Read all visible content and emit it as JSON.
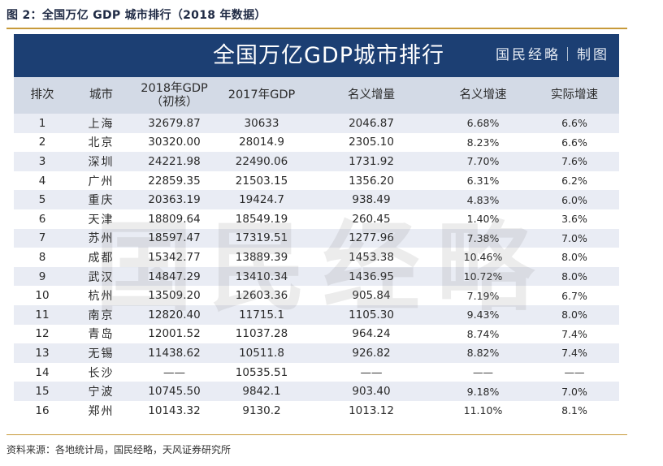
{
  "figure": {
    "title": "图 2：全国万亿 GDP 城市排行（2018 年数据）",
    "source": "资料来源：各地统计局，国民经略，天风证券研究所"
  },
  "banner": {
    "title": "全国万亿GDP城市排行",
    "brand": "国民经略｜制图"
  },
  "watermark": "国民经略",
  "table": {
    "headers": [
      "排次",
      "城市",
      "2018年GDP\n（初核）",
      "2017年GDP",
      "名义增量",
      "名义增速",
      "实际增速"
    ],
    "rows": [
      [
        "1",
        "上海",
        "32679.87",
        "30633",
        "2046.87",
        "6.68%",
        "6.6%"
      ],
      [
        "2",
        "北京",
        "30320.00",
        "28014.9",
        "2305.10",
        "8.23%",
        "6.6%"
      ],
      [
        "3",
        "深圳",
        "24221.98",
        "22490.06",
        "1731.92",
        "7.70%",
        "7.6%"
      ],
      [
        "4",
        "广州",
        "22859.35",
        "21503.15",
        "1356.20",
        "6.31%",
        "6.2%"
      ],
      [
        "5",
        "重庆",
        "20363.19",
        "19424.7",
        "938.49",
        "4.83%",
        "6.0%"
      ],
      [
        "6",
        "天津",
        "18809.64",
        "18549.19",
        "260.45",
        "1.40%",
        "3.6%"
      ],
      [
        "7",
        "苏州",
        "18597.47",
        "17319.51",
        "1277.96",
        "7.38%",
        "7.0%"
      ],
      [
        "8",
        "成都",
        "15342.77",
        "13889.39",
        "1453.38",
        "10.46%",
        "8.0%"
      ],
      [
        "9",
        "武汉",
        "14847.29",
        "13410.34",
        "1436.95",
        "10.72%",
        "8.0%"
      ],
      [
        "10",
        "杭州",
        "13509.20",
        "12603.36",
        "905.84",
        "7.19%",
        "6.7%"
      ],
      [
        "11",
        "南京",
        "12820.40",
        "11715.1",
        "1105.30",
        "9.43%",
        "8.0%"
      ],
      [
        "12",
        "青岛",
        "12001.52",
        "11037.28",
        "964.24",
        "8.74%",
        "7.4%"
      ],
      [
        "13",
        "无锡",
        "11438.62",
        "10511.8",
        "926.82",
        "8.82%",
        "7.4%"
      ],
      [
        "14",
        "长沙",
        "——",
        "10535.51",
        "——",
        "——",
        "——"
      ],
      [
        "15",
        "宁波",
        "10745.50",
        "9842.1",
        "903.40",
        "9.18%",
        "7.0%"
      ],
      [
        "16",
        "郑州",
        "10143.32",
        "9130.2",
        "1013.12",
        "11.10%",
        "8.1%"
      ]
    ]
  }
}
